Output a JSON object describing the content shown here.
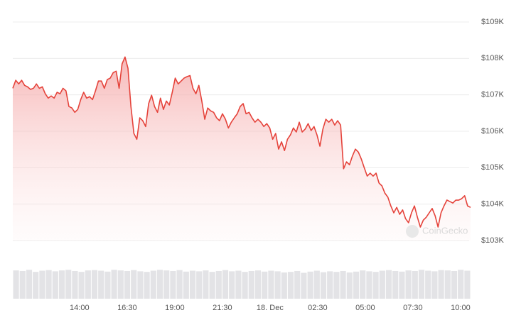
{
  "chart_data": {
    "type": "area",
    "watermark": "CoinGecko",
    "color": "#e5433b",
    "grid": true,
    "xlim": [
      10.5,
      34.525
    ],
    "xticks": [
      {
        "value": 14,
        "label": "14:00"
      },
      {
        "value": 16.5,
        "label": "16:30"
      },
      {
        "value": 19,
        "label": "19:00"
      },
      {
        "value": 21.5,
        "label": "21:30"
      },
      {
        "value": 24,
        "label": "18. Dec"
      },
      {
        "value": 26.5,
        "label": "02:30"
      },
      {
        "value": 29,
        "label": "05:00"
      },
      {
        "value": 31.5,
        "label": "07:30"
      },
      {
        "value": 34,
        "label": "10:00"
      }
    ],
    "ylim": [
      103000,
      109000
    ],
    "yticks": [
      {
        "value": 103000,
        "label": "$103K"
      },
      {
        "value": 104000,
        "label": "$104K"
      },
      {
        "value": 105000,
        "label": "$105K"
      },
      {
        "value": 106000,
        "label": "$106K"
      },
      {
        "value": 107000,
        "label": "$107K"
      },
      {
        "value": 108000,
        "label": "$108K"
      },
      {
        "value": 109000,
        "label": "$109K"
      }
    ],
    "x": [
      10.5,
      10.655,
      10.81,
      10.965,
      11.12,
      11.275,
      11.43,
      11.585,
      11.74,
      11.895,
      12.05,
      12.205,
      12.36,
      12.515,
      12.67,
      12.825,
      12.98,
      13.135,
      13.29,
      13.445,
      13.6,
      13.755,
      13.91,
      14.065,
      14.22,
      14.375,
      14.53,
      14.685,
      14.84,
      14.995,
      15.15,
      15.305,
      15.46,
      15.615,
      15.77,
      15.925,
      16.08,
      16.235,
      16.39,
      16.545,
      16.7,
      16.855,
      17.01,
      17.165,
      17.32,
      17.475,
      17.63,
      17.785,
      17.94,
      18.095,
      18.25,
      18.405,
      18.56,
      18.715,
      18.87,
      19.025,
      19.18,
      19.335,
      19.49,
      19.645,
      19.8,
      19.955,
      20.11,
      20.265,
      20.42,
      20.575,
      20.73,
      20.885,
      21.04,
      21.195,
      21.35,
      21.505,
      21.66,
      21.815,
      21.97,
      22.125,
      22.28,
      22.435,
      22.59,
      22.745,
      22.9,
      23.055,
      23.21,
      23.365,
      23.52,
      23.675,
      23.83,
      23.985,
      24.14,
      24.295,
      24.45,
      24.605,
      24.76,
      24.915,
      25.07,
      25.225,
      25.38,
      25.535,
      25.69,
      25.845,
      26.0,
      26.155,
      26.31,
      26.465,
      26.62,
      26.775,
      26.93,
      27.085,
      27.24,
      27.395,
      27.55,
      27.705,
      27.86,
      28.015,
      28.17,
      28.325,
      28.48,
      28.635,
      28.79,
      28.945,
      29.1,
      29.255,
      29.41,
      29.565,
      29.72,
      29.875,
      30.03,
      30.185,
      30.34,
      30.495,
      30.65,
      30.805,
      30.96,
      31.115,
      31.27,
      31.425,
      31.58,
      31.735,
      31.89,
      32.045,
      32.2,
      32.355,
      32.51,
      32.665,
      32.82,
      32.975,
      33.13,
      33.285,
      33.44,
      33.595,
      33.75,
      33.905,
      34.06,
      34.215,
      34.37,
      34.525
    ],
    "values": [
      107180,
      107400,
      107300,
      107400,
      107260,
      107220,
      107150,
      107180,
      107300,
      107180,
      107220,
      107030,
      106910,
      106970,
      106910,
      107070,
      107030,
      107180,
      107110,
      106680,
      106640,
      106520,
      106600,
      106870,
      107070,
      106910,
      106950,
      106870,
      107110,
      107380,
      107380,
      107180,
      107420,
      107460,
      107610,
      107650,
      107180,
      107850,
      108040,
      107730,
      106680,
      105940,
      105780,
      106370,
      106290,
      106130,
      106760,
      106990,
      106680,
      106520,
      106910,
      106600,
      106830,
      106720,
      107070,
      107460,
      107300,
      107380,
      107460,
      107500,
      107530,
      107180,
      107030,
      107260,
      106830,
      106330,
      106640,
      106560,
      106520,
      106370,
      106290,
      106480,
      106330,
      106090,
      106250,
      106370,
      106480,
      106680,
      106760,
      106480,
      106520,
      106370,
      106250,
      106330,
      106250,
      106130,
      106210,
      106090,
      105780,
      105940,
      105510,
      105710,
      105470,
      105780,
      105900,
      106090,
      105980,
      106250,
      105980,
      106060,
      106210,
      106020,
      106130,
      105900,
      105590,
      106060,
      106330,
      106250,
      106330,
      106170,
      106290,
      106170,
      104970,
      105160,
      105080,
      105320,
      105510,
      105430,
      105240,
      105000,
      104770,
      104850,
      104770,
      104850,
      104580,
      104500,
      104300,
      104190,
      103950,
      103760,
      103910,
      103720,
      103840,
      103600,
      103490,
      103760,
      103950,
      103640,
      103370,
      103560,
      103640,
      103760,
      103880,
      103680,
      103370,
      103760,
      103950,
      104110,
      104070,
      104030,
      104110,
      104110,
      104150,
      104230,
      103950,
      103910
    ],
    "volume": {
      "ylim": [
        0,
        1
      ],
      "color": "#e3e3e6",
      "values": [
        0.95,
        0.93,
        0.97,
        0.9,
        0.94,
        0.96,
        0.92,
        0.95,
        0.97,
        0.93,
        0.9,
        0.95,
        0.96,
        0.94,
        0.91,
        0.97,
        0.95,
        0.93,
        0.96,
        0.92,
        0.9,
        0.94,
        0.97,
        0.95,
        0.93,
        0.96,
        0.91,
        0.94,
        0.92,
        0.95,
        0.9,
        0.93,
        0.96,
        0.92,
        0.94,
        0.9,
        0.93,
        0.95,
        0.91,
        0.94,
        0.92,
        0.88,
        0.9,
        0.93,
        0.87,
        0.91,
        0.94,
        0.89,
        0.92,
        0.9,
        0.93,
        0.88,
        0.91,
        0.95,
        0.92,
        0.9,
        0.94,
        0.96,
        0.93,
        0.91,
        0.95,
        0.93,
        0.97,
        0.94,
        0.92,
        0.96,
        0.95,
        0.93,
        0.97,
        0.94
      ]
    }
  }
}
